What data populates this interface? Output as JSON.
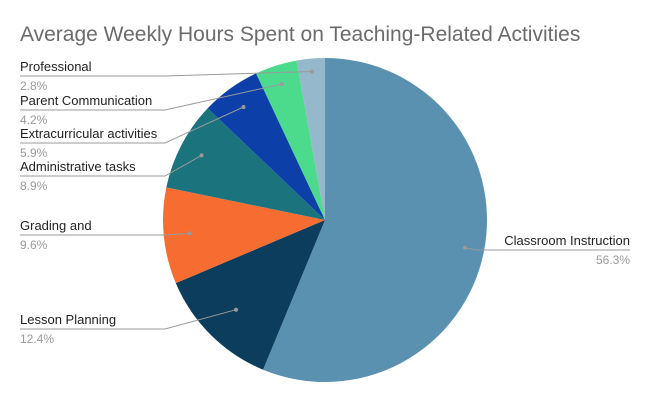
{
  "chart_data": {
    "type": "pie",
    "title": "Average Weekly Hours Spent on Teaching-Related Activities",
    "slices": [
      {
        "label": "Classroom Instruction",
        "value": 56.3,
        "pct_label": "56.3%",
        "color": "#5a91b0"
      },
      {
        "label": "Lesson Planning",
        "value": 12.4,
        "pct_label": "12.4%",
        "color": "#0c3d5c"
      },
      {
        "label": "Grading and",
        "value": 9.6,
        "pct_label": "9.6%",
        "color": "#f76d31"
      },
      {
        "label": "Administrative tasks",
        "value": 8.9,
        "pct_label": "8.9%",
        "color": "#1a737d"
      },
      {
        "label": "Extracurricular activities",
        "value": 5.9,
        "pct_label": "5.9%",
        "color": "#0c40a8"
      },
      {
        "label": "Parent Communication",
        "value": 4.2,
        "pct_label": "4.2%",
        "color": "#4cdb8c"
      },
      {
        "label": "Professional",
        "value": 2.8,
        "pct_label": "2.8%",
        "color": "#95b8cc"
      }
    ]
  }
}
